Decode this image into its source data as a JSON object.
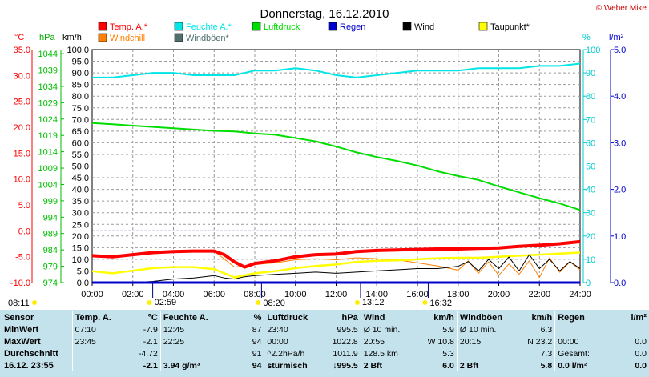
{
  "title": "Donnerstag, 16.12.2010",
  "copyright": "© Weber Mike",
  "colors": {
    "temp": "#ff0000",
    "hum": "#00e5e5",
    "press": "#00dd00",
    "rain": "#0000cc",
    "wind": "#000000",
    "dew": "#ffff00",
    "chill": "#ff8000",
    "gust": "#507070"
  },
  "legend": [
    {
      "label": "Temp. A.*",
      "color": "#ff0000"
    },
    {
      "label": "Feuchte A.*",
      "color": "#00e5e5"
    },
    {
      "label": "Luftdruck",
      "color": "#00dd00"
    },
    {
      "label": "Regen",
      "color": "#0000cc"
    },
    {
      "label": "Wind",
      "color": "#000000"
    },
    {
      "label": "Taupunkt*",
      "color": "#ffff00"
    },
    {
      "label": "Windchill",
      "color": "#ff8000"
    },
    {
      "label": "Windböen*",
      "color": "#507070"
    }
  ],
  "units": {
    "temp": "°C",
    "press": "hPa",
    "wind": "km/h",
    "hum": "%",
    "rain": "l/m²"
  },
  "markers": [
    {
      "time": "08:11",
      "x": 0.2
    },
    {
      "time": "02:59",
      "x": 2.98
    },
    {
      "time": "08:20",
      "x": 8.33
    },
    {
      "time": "13:12",
      "x": 13.2
    },
    {
      "time": "16:32",
      "x": 16.53
    }
  ],
  "chart_data": {
    "type": "line",
    "x_ticks": [
      "00:00",
      "02:00",
      "04:00",
      "06:00",
      "08:00",
      "10:00",
      "12:00",
      "14:00",
      "16:00",
      "18:00",
      "20:00",
      "22:00",
      "24:00"
    ],
    "xlim": [
      0,
      24
    ],
    "axes": {
      "temp": {
        "lim": [
          -10,
          35
        ],
        "ticks": [
          "35.0",
          "30.0",
          "25.0",
          "20.0",
          "15.0",
          "10.0",
          "5.0",
          "0.0",
          "-5.0",
          "-10.0"
        ]
      },
      "press": {
        "lim": [
          974,
          1045.25
        ],
        "ticks": [
          "1044",
          "1039",
          "1034",
          "1029",
          "1024",
          "1019",
          "1014",
          "1009",
          "1004",
          "999",
          "994",
          "989",
          "984",
          "979",
          "974"
        ]
      },
      "wind": {
        "lim": [
          0,
          100
        ],
        "ticks": [
          "100.0",
          "95.0",
          "90.0",
          "85.0",
          "80.0",
          "75.0",
          "70.0",
          "65.0",
          "60.0",
          "55.0",
          "50.0",
          "45.0",
          "40.0",
          "35.0",
          "30.0",
          "25.0",
          "20.0",
          "15.0",
          "10.0",
          "5.0",
          "0.0"
        ]
      },
      "hum": {
        "lim": [
          0,
          100
        ],
        "ticks": [
          "100",
          "90",
          "80",
          "70",
          "60",
          "50",
          "40",
          "30",
          "20",
          "10",
          "0"
        ]
      },
      "rain": {
        "lim": [
          0,
          5
        ],
        "ticks": [
          "5.0",
          "4.0",
          "3.0",
          "2.0",
          "1.0",
          "0.0"
        ]
      }
    },
    "series": [
      {
        "name": "Temp. A.*",
        "axis": "temp",
        "x": [
          0,
          1,
          2,
          3,
          4,
          5,
          6,
          6.5,
          7,
          7.5,
          8,
          9,
          10,
          11,
          12,
          13,
          14,
          15,
          16,
          17,
          18,
          19,
          20,
          21,
          22,
          23,
          24
        ],
        "y": [
          -4.8,
          -5.0,
          -4.6,
          -4.2,
          -4.0,
          -3.9,
          -3.9,
          -4.6,
          -6.0,
          -7.0,
          -6.3,
          -5.8,
          -5.0,
          -4.6,
          -4.5,
          -4.0,
          -3.8,
          -3.7,
          -3.6,
          -3.5,
          -3.5,
          -3.4,
          -3.3,
          -3.0,
          -2.8,
          -2.5,
          -2.1
        ]
      },
      {
        "name": "Feuchte A.*",
        "axis": "hum",
        "x": [
          0,
          1,
          2,
          3,
          4,
          5,
          6,
          7,
          8,
          9,
          10,
          11,
          12,
          13,
          14,
          15,
          16,
          17,
          18,
          19,
          20,
          21,
          22,
          23,
          24
        ],
        "y": [
          88,
          88,
          89,
          90,
          90,
          89,
          89,
          89,
          91,
          91,
          92,
          91,
          89,
          88,
          89,
          90,
          91,
          91,
          91,
          92,
          92,
          92,
          93,
          93,
          94
        ]
      },
      {
        "name": "Luftdruck",
        "axis": "press",
        "x": [
          0,
          1,
          2,
          3,
          4,
          5,
          6,
          7,
          8,
          9,
          10,
          11,
          12,
          13,
          14,
          15,
          16,
          17,
          18,
          19,
          20,
          21,
          22,
          23,
          24
        ],
        "y": [
          1022.8,
          1022.4,
          1022.0,
          1021.6,
          1021.2,
          1020.8,
          1020.4,
          1020.2,
          1019.6,
          1019.2,
          1018.2,
          1017.2,
          1015.6,
          1013.8,
          1012.4,
          1011.2,
          1009.8,
          1008.0,
          1006.6,
          1005.4,
          1003.4,
          1001.6,
          999.8,
          998.2,
          996.2
        ]
      },
      {
        "name": "Taupunkt*",
        "axis": "temp",
        "x": [
          0,
          1,
          2,
          3,
          4,
          5,
          6,
          7,
          8,
          9,
          10,
          11,
          12,
          13,
          14,
          15,
          16,
          17,
          18,
          19,
          20,
          21,
          22,
          23,
          24
        ],
        "y": [
          -7.8,
          -8.2,
          -7.7,
          -7.2,
          -7.0,
          -7.0,
          -7.4,
          -9.0,
          -8.2,
          -7.8,
          -7.2,
          -6.8,
          -6.5,
          -6.0,
          -5.8,
          -5.7,
          -5.5,
          -5.3,
          -5.2,
          -5.2,
          -5.0,
          -4.8,
          -4.6,
          -4.4,
          -4.2
        ]
      },
      {
        "name": "Windchill",
        "axis": "temp",
        "x": [
          0,
          2,
          3,
          4,
          6,
          7,
          8,
          9,
          10,
          11,
          12,
          13,
          14,
          15,
          16,
          17,
          18,
          18.5,
          19,
          19.5,
          20,
          20.5,
          21,
          21.5,
          22,
          22.5,
          23,
          23.5,
          24
        ],
        "y": [
          -4.8,
          -4.6,
          -4.2,
          -4.0,
          -3.9,
          -7.0,
          -6.5,
          -6.2,
          -5.6,
          -5.4,
          -5.6,
          -5.2,
          -5.4,
          -5.6,
          -6.2,
          -6.8,
          -7.6,
          -5.8,
          -8.2,
          -6.0,
          -8.6,
          -6.4,
          -8.4,
          -5.8,
          -9.0,
          -5.2,
          -8.0,
          -6.0,
          -7.5
        ]
      },
      {
        "name": "Wind",
        "axis": "wind",
        "x": [
          0,
          1,
          2,
          3,
          4,
          5,
          6,
          6.5,
          7,
          7.5,
          8,
          9,
          10,
          11,
          12,
          13,
          14,
          15,
          16,
          17,
          18,
          18.5,
          19,
          19.5,
          20,
          20.5,
          21,
          21.5,
          22,
          22.5,
          23,
          23.5,
          24
        ],
        "y": [
          0,
          0,
          0,
          0.5,
          1.5,
          2.0,
          3.0,
          2.0,
          1.5,
          2.5,
          3.0,
          3.5,
          4.0,
          4.5,
          4.0,
          4.5,
          5.0,
          5.5,
          6.0,
          6.0,
          7.0,
          9.0,
          5.0,
          10.0,
          6.0,
          11.0,
          5.0,
          12.0,
          6.0,
          10.0,
          5.0,
          9.0,
          6.0
        ]
      },
      {
        "name": "Regen",
        "axis": "rain",
        "x": [
          0,
          24
        ],
        "y": [
          0,
          0
        ]
      }
    ]
  },
  "stats": {
    "headers": [
      "Sensor",
      "Temp. A.",
      "°C",
      "Feuchte A.",
      "%",
      "Luftdruck",
      "hPa",
      "Wind",
      "km/h",
      "Windböen",
      "km/h",
      "Regen",
      "l/m²"
    ],
    "rows": [
      {
        "label": "MinWert",
        "cells": [
          "07:10",
          "-7.9",
          "12:45",
          "87",
          "23:40",
          "995.5",
          "Ø 10 min.",
          "5.9",
          "Ø 10 min.",
          "6.3",
          "",
          ""
        ]
      },
      {
        "label": "MaxWert",
        "cells": [
          "23:45",
          "-2.1",
          "22:25",
          "94",
          "00:00",
          "1022.8",
          "20:55",
          "W 10.8",
          "20:15",
          "N 23.2",
          "00:00",
          "0.0"
        ]
      },
      {
        "label": "Durchschnitt",
        "cells": [
          "",
          "-4.72",
          "",
          "91",
          "^2.2hPa/h",
          "1011.9",
          "128.5 km",
          "5.3",
          "",
          "7.3",
          "Gesamt:",
          "0.0"
        ]
      },
      {
        "label": "16.12. 23:55",
        "cells": [
          "",
          "-2.1",
          "3.94 g/m³",
          "94",
          "stürmisch",
          "↓995.5",
          "2 Bft",
          "6.0",
          "2 Bft",
          "5.8",
          "0.0 l/m²",
          "0.0"
        ]
      }
    ]
  }
}
